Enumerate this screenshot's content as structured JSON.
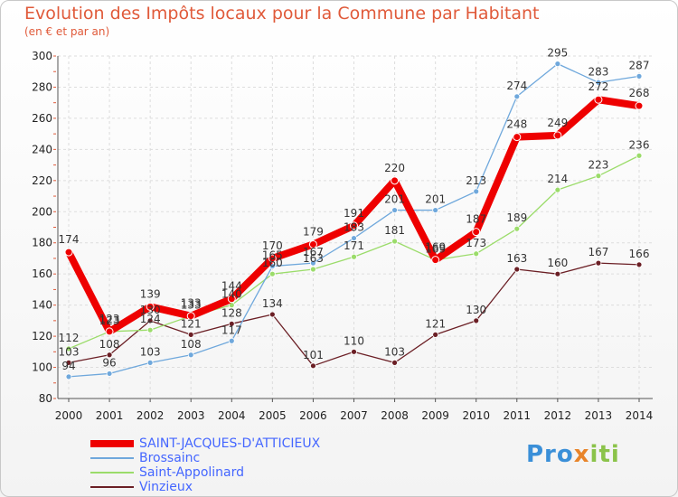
{
  "header": {
    "title": "Evolution des Impôts locaux pour la Commune par Habitant",
    "subtitle": "(en € et par an)"
  },
  "chart_data": {
    "type": "line",
    "title": "Evolution des Impôts locaux pour la Commune par Habitant",
    "subtitle": "(en € et par an)",
    "xlabel": "",
    "ylabel": "",
    "categories": [
      "2000",
      "2001",
      "2002",
      "2003",
      "2004",
      "2005",
      "2006",
      "2007",
      "2008",
      "2009",
      "2010",
      "2011",
      "2012",
      "2013",
      "2014"
    ],
    "ylim": [
      80,
      300
    ],
    "yticks": [
      80,
      100,
      120,
      140,
      160,
      180,
      200,
      220,
      240,
      260,
      280,
      300
    ],
    "grid": true,
    "legend_position": "bottom-left",
    "series": [
      {
        "name": "SAINT-JACQUES-D'ATTICIEUX",
        "color": "#ee0000",
        "width": 8,
        "values": [
          174,
          123,
          139,
          133,
          144,
          170,
          179,
          191,
          220,
          169,
          187,
          248,
          249,
          272,
          268
        ]
      },
      {
        "name": "Brossainc",
        "color": "#6fa8dc",
        "width": 1.3,
        "values": [
          94,
          96,
          103,
          108,
          117,
          165,
          167,
          183,
          201,
          201,
          213,
          274,
          295,
          283,
          287
        ]
      },
      {
        "name": "Saint-Appolinard",
        "color": "#9bdc6a",
        "width": 1.3,
        "values": [
          112,
          123,
          124,
          133,
          140,
          160,
          163,
          171,
          181,
          169,
          173,
          189,
          214,
          223,
          236
        ]
      },
      {
        "name": "Vinzieux",
        "color": "#6b1f25",
        "width": 1.3,
        "values": [
          103,
          108,
          130,
          121,
          128,
          134,
          101,
          110,
          103,
          121,
          130,
          163,
          160,
          167,
          166
        ]
      }
    ]
  },
  "logo": {
    "part1": "Pro",
    "part2": "x",
    "part3": "iti"
  }
}
